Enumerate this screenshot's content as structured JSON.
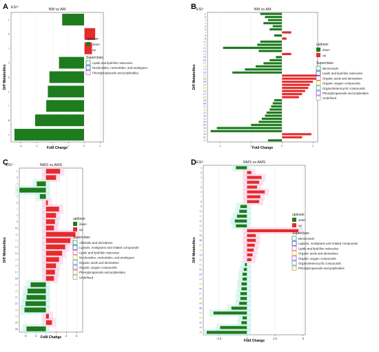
{
  "colors": {
    "down": "#1e7b1e",
    "up": "#e52b2b",
    "grid": "#e6e6e6",
    "halo_pink": "#f8cde8",
    "halo_teal": "#c6f0ea"
  },
  "common": {
    "xlabel": "Fold Change",
    "ylabel": "Diff Metabolites",
    "legend_title_updown": "updown",
    "legend_title_superclass": "Superclass",
    "down": "down",
    "up": "up"
  },
  "chart_data": [
    {
      "id": "A",
      "letter": "A",
      "type": "bar",
      "esi": "ESI⁺",
      "title": "NM vs AM",
      "xlim": [
        -4.6,
        1.2
      ],
      "xticks": [
        -4,
        -3,
        -2,
        -1,
        0,
        1
      ],
      "categories": [
        "1",
        "2",
        "3",
        "4",
        "5",
        "6",
        "7",
        "8",
        "9"
      ],
      "values": [
        -1.4,
        0.7,
        0.5,
        -1.6,
        -2.2,
        -2.3,
        -2.4,
        -3.1,
        -4.4
      ],
      "superclasses": [
        "Lipids and lipid-like molecules",
        "Nucleosides, nucleotides, and analogues",
        "Phenylpropanoids and polyketides"
      ],
      "superclass_colors": [
        "#0a8f3c",
        "#1f2fb8",
        "#d94fb0"
      ]
    },
    {
      "id": "B",
      "letter": "B",
      "type": "bar",
      "esi": "ESI⁻",
      "title": "NM vs AM",
      "xlim": [
        -4.8,
        2.3
      ],
      "xticks": [
        -4,
        -2,
        0,
        2
      ],
      "categories": [
        "1",
        "2",
        "3",
        "4",
        "5",
        "6",
        "7",
        "8",
        "9",
        "10",
        "11",
        "12",
        "13",
        "14",
        "15",
        "16",
        "17",
        "18",
        "19",
        "20",
        "21",
        "22",
        "23",
        "24",
        "25",
        "26",
        "27",
        "28",
        "29",
        "30",
        "31",
        "32",
        "33",
        "34",
        "35",
        "36",
        "37",
        "38",
        "39",
        "40",
        "41",
        "42"
      ],
      "values": [
        -1.4,
        -1.1,
        -0.9,
        -1.2,
        -0.6,
        -0.8,
        0.6,
        -0.5,
        0.3,
        -1.4,
        -1.6,
        -3.8,
        -1.5,
        0.6,
        -0.4,
        -0.8,
        -1.2,
        -1.7,
        -2.4,
        -3.2,
        2.4,
        2.2,
        2.0,
        1.8,
        1.7,
        1.5,
        1.3,
        1.1,
        -0.5,
        -0.6,
        -0.7,
        -0.8,
        -1.0,
        -1.1,
        -1.3,
        -1.5,
        -2.0,
        -4.2,
        -4.6,
        1.9,
        1.3,
        -0.9
      ],
      "superclasses": [
        "Benzenoids",
        "Lipids and lipid-like molecules",
        "Organic acids and derivatives",
        "Organic oxygen compounds",
        "Organoheterocyclic compounds",
        "Phenylpropanoids and polyketides",
        "Undefined"
      ],
      "superclass_colors": [
        "#0a8f3c",
        "#1f2fb8",
        "#d94fb0",
        "#c8b400",
        "#1a9dbd",
        "#9a2fc9",
        "#999999"
      ]
    },
    {
      "id": "C",
      "letter": "C",
      "type": "bar",
      "esi": "ESI⁺",
      "title": "NMS vs AMS",
      "xlim": [
        -2.6,
        3.6
      ],
      "xticks": [
        -2,
        -1,
        0,
        1,
        2,
        3
      ],
      "categories": [
        "1",
        "2",
        "3",
        "4",
        "5",
        "6",
        "7",
        "8",
        "9",
        "10",
        "11",
        "12",
        "13",
        "14",
        "15",
        "16",
        "17",
        "18",
        "19",
        "20",
        "21",
        "22",
        "23",
        "24",
        "25",
        "26"
      ],
      "values": [
        1.4,
        1.0,
        -0.9,
        -2.6,
        -0.6,
        0.2,
        1.3,
        1.0,
        0.9,
        0.8,
        2.9,
        2.4,
        1.9,
        1.6,
        1.3,
        1.0,
        0.9,
        0.8,
        -1.5,
        -1.8,
        -1.9,
        -2.0,
        -2.1,
        0.3,
        0.6,
        -1.9
      ],
      "superclasses": [
        "Alkaloids and derivatives",
        "Lignans, neolignans and related compounds",
        "Lipids and lipid-like molecules",
        "Nucleosides, nucleotides, and analogues",
        "Organic acids and derivatives",
        "Organic oxygen compounds",
        "Phenylpropanoids and polyketides",
        "Undefined"
      ],
      "superclass_colors": [
        "#0a8f3c",
        "#1f2fb8",
        "#d94fb0",
        "#c8b400",
        "#1a9dbd",
        "#9a2fc9",
        "#c28a1a",
        "#999999"
      ]
    },
    {
      "id": "D",
      "letter": "D",
      "type": "bar",
      "esi": "ESI⁻",
      "title": "NMS vs AMS",
      "xlim": [
        -3.9,
        5.2
      ],
      "xticks": [
        -2.5,
        0.0,
        2.5,
        5.0
      ],
      "categories": [
        "1",
        "2",
        "3",
        "4",
        "5",
        "6",
        "7",
        "8",
        "9",
        "10",
        "11",
        "12",
        "13",
        "14",
        "15",
        "16",
        "17",
        "18",
        "19",
        "20",
        "21",
        "22",
        "23",
        "24",
        "25",
        "26",
        "27",
        "28",
        "29",
        "30",
        "31",
        "32",
        "33",
        "34",
        "35"
      ],
      "values": [
        -1.0,
        0.4,
        1.3,
        1.1,
        0.9,
        1.6,
        1.2,
        1.1,
        -0.6,
        -0.7,
        -0.9,
        -1.1,
        -1.0,
        4.6,
        0.8,
        0.8,
        0.7,
        0.6,
        0.5,
        0.4,
        -0.2,
        -0.3,
        -0.4,
        -0.4,
        -0.5,
        -0.5,
        -0.6,
        -0.6,
        -0.7,
        -1.4,
        -3.0,
        -0.4,
        -0.5,
        -2.4,
        -3.6
      ],
      "superclasses": [
        "Benzenoids",
        "Lignans, neolignans and related compounds",
        "Lipids and lipid-like molecules",
        "Organic acids and derivatives",
        "Organic oxygen compounds",
        "Organoheterocyclic compounds",
        "Phenylpropanoids and polyketides"
      ],
      "superclass_colors": [
        "#0a8f3c",
        "#1f2fb8",
        "#d94fb0",
        "#c8b400",
        "#9a2fc9",
        "#1a9dbd",
        "#c28a1a"
      ]
    }
  ]
}
